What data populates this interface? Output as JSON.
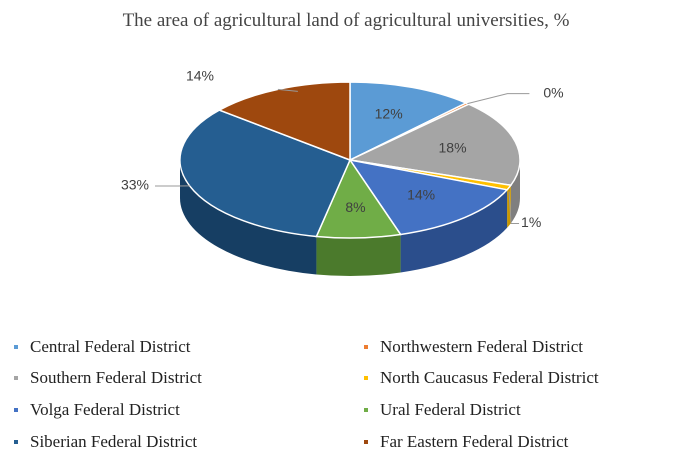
{
  "chart_data": {
    "type": "pie",
    "title": "The area of agricultural land of agricultural universities, %",
    "three_d": true,
    "legend_placement": "bottom",
    "categories": [
      "Central Federal District",
      "Northwestern Federal District",
      "Southern Federal District",
      "North Caucasus Federal District",
      "Volga Federal District",
      "Ural Federal District",
      "Siberian Federal District",
      "Far Eastern Federal District"
    ],
    "values": [
      12,
      0,
      18,
      1,
      14,
      8,
      33,
      14
    ],
    "labels": [
      "12%",
      "0%",
      "18%",
      "1%",
      "14%",
      "8%",
      "33%",
      "14%"
    ],
    "colors": [
      "#5B9BD5",
      "#ED7D31",
      "#A5A5A5",
      "#FFC000",
      "#4472C4",
      "#70AD47",
      "#255E91",
      "#9E480E"
    ],
    "side_colors": [
      "#3E78AE",
      "#B85E22",
      "#7F7F7F",
      "#C99700",
      "#2B4E8C",
      "#4B7A2C",
      "#163E63",
      "#6C300A"
    ]
  }
}
